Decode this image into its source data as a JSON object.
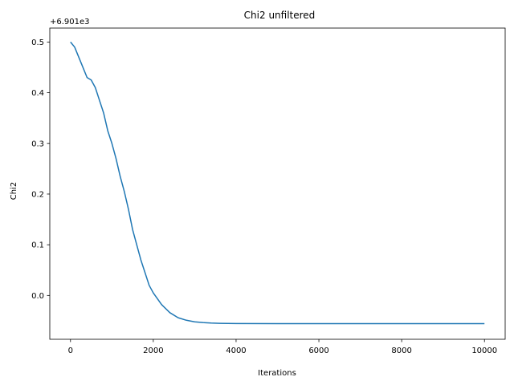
{
  "chart_data": {
    "type": "line",
    "title": "Chi2 unfiltered",
    "xlabel": "Iterations",
    "ylabel": "Chi2",
    "offset_text": "+6.901e3",
    "xlim": [
      -500,
      10500
    ],
    "ylim": [
      -0.0865,
      0.5275
    ],
    "xticks": [
      0,
      2000,
      4000,
      6000,
      8000,
      10000
    ],
    "xtick_labels": [
      "0",
      "2000",
      "4000",
      "6000",
      "8000",
      "10000"
    ],
    "yticks": [
      0.0,
      0.1,
      0.2,
      0.3,
      0.4,
      0.5
    ],
    "ytick_labels": [
      "0.0",
      "0.1",
      "0.2",
      "0.3",
      "0.4",
      "0.5"
    ],
    "grid": false,
    "series": [
      {
        "color": "#1f77b4",
        "x": [
          0,
          100,
          200,
          300,
          400,
          500,
          600,
          700,
          800,
          900,
          1000,
          1100,
          1200,
          1300,
          1400,
          1500,
          1600,
          1700,
          1800,
          1900,
          2000,
          2200,
          2400,
          2600,
          2800,
          3000,
          3200,
          3400,
          3600,
          3800,
          4000,
          5000,
          6000,
          7000,
          8000,
          9000,
          10000
        ],
        "y": [
          0.5,
          0.49,
          0.47,
          0.45,
          0.43,
          0.425,
          0.41,
          0.385,
          0.36,
          0.325,
          0.3,
          0.27,
          0.235,
          0.205,
          0.17,
          0.13,
          0.1,
          0.07,
          0.045,
          0.02,
          0.005,
          -0.018,
          -0.034,
          -0.044,
          -0.049,
          -0.052,
          -0.0535,
          -0.0545,
          -0.055,
          -0.0553,
          -0.0555,
          -0.0556,
          -0.0556,
          -0.0556,
          -0.0556,
          -0.0556,
          -0.0556
        ]
      }
    ]
  }
}
